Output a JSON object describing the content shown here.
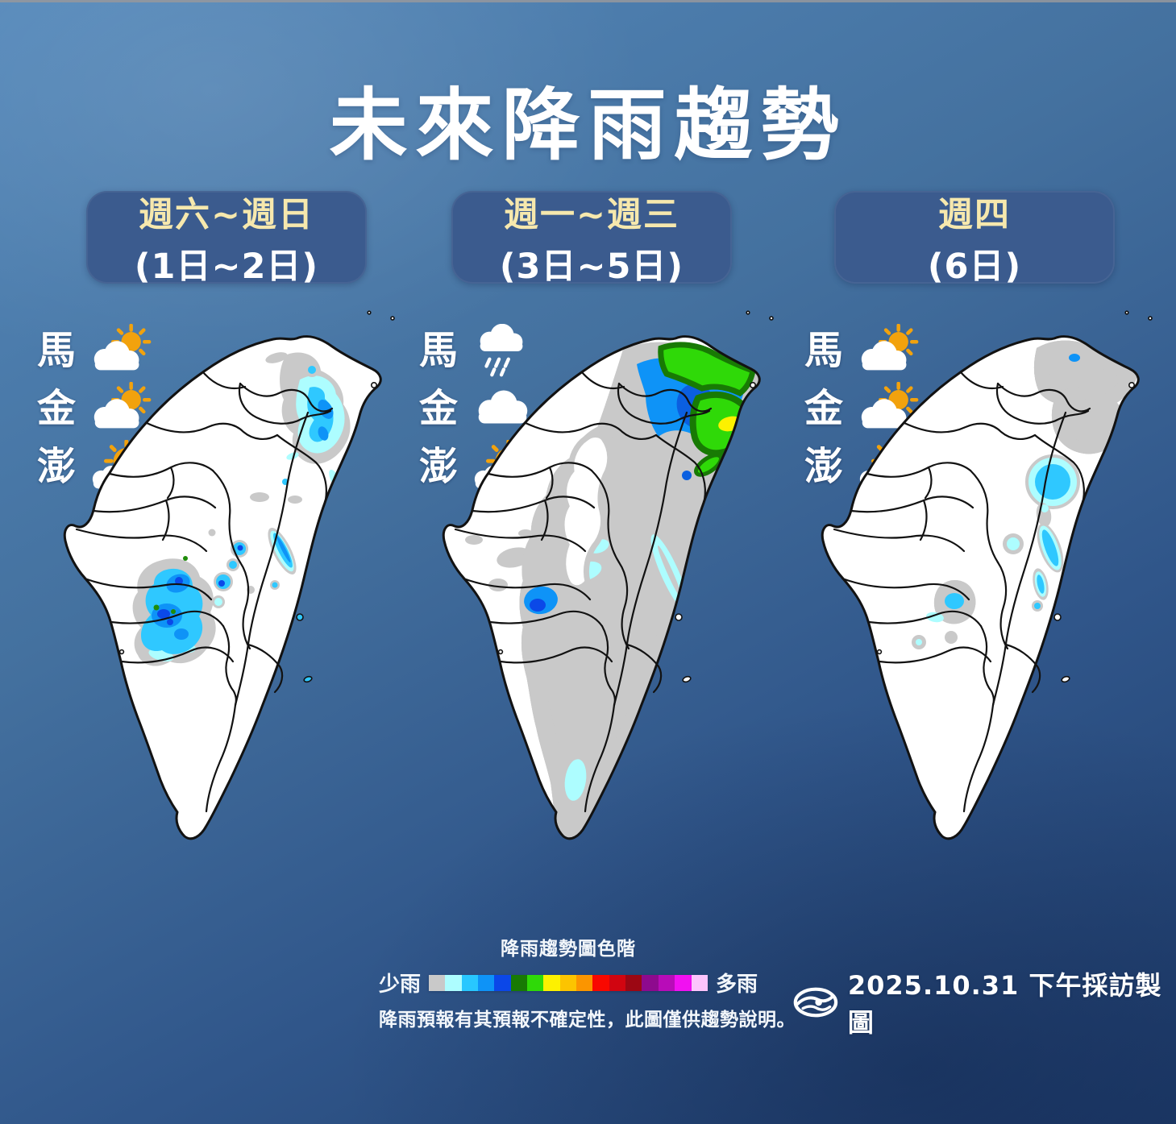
{
  "title": "未來降雨趨勢",
  "panels": [
    {
      "period": "週六~週日",
      "dates": "(1日~2日)",
      "map_name": "taiwan-rain-map-weekend",
      "regions": [
        {
          "name": "馬",
          "icon": "partly-cloudy"
        },
        {
          "name": "金",
          "icon": "partly-cloudy"
        },
        {
          "name": "澎",
          "icon": "mostly-sunny"
        }
      ]
    },
    {
      "period": "週一~週三",
      "dates": "(3日~5日)",
      "map_name": "taiwan-rain-map-mon-wed",
      "regions": [
        {
          "name": "馬",
          "icon": "rain"
        },
        {
          "name": "金",
          "icon": "cloudy"
        },
        {
          "name": "澎",
          "icon": "mostly-sunny"
        }
      ]
    },
    {
      "period": "週四",
      "dates": "(6日)",
      "map_name": "taiwan-rain-map-thu",
      "regions": [
        {
          "name": "馬",
          "icon": "partly-cloudy"
        },
        {
          "name": "金",
          "icon": "partly-cloudy"
        },
        {
          "name": "澎",
          "icon": "mostly-sunny"
        }
      ]
    }
  ],
  "legend": {
    "title": "降雨趨勢圖色階",
    "left_label": "少雨",
    "right_label": "多雨",
    "colors": [
      "#c9c9c9",
      "#adfdff",
      "#28c7ff",
      "#0e93f7",
      "#0b47e8",
      "#187a04",
      "#2fd908",
      "#fdf100",
      "#fcc400",
      "#fb9500",
      "#f90800",
      "#d10510",
      "#9c0713",
      "#8e0a8e",
      "#b80cb8",
      "#f111f1",
      "#fcc4fc"
    ],
    "disclaimer": "降雨預報有其預報不確定性，此圖僅供趨勢說明。"
  },
  "footer": {
    "date_caption": "2025.10.31 下午採訪製圖"
  },
  "rain_palette": {
    "trace_gray": "#c9c9c9",
    "very_light": "#adfdff",
    "light": "#2fc8ff",
    "moderate": "#0e93f7",
    "heavy": "#0b49e8",
    "dark_green": "#187a04",
    "green": "#2fd908",
    "yellow": "#fdf100"
  }
}
